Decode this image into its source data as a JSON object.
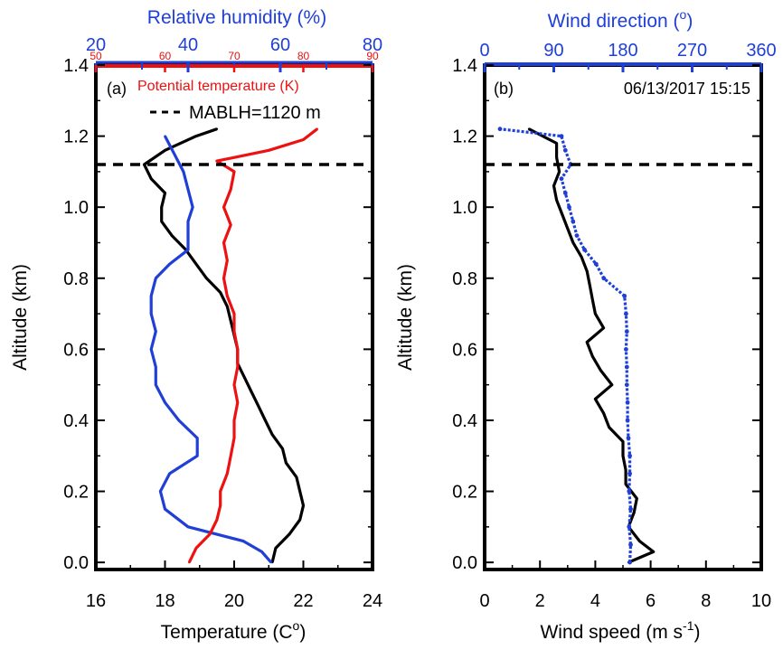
{
  "colors": {
    "black": "#000000",
    "blue": "#1f3fd6",
    "red": "#ee1111",
    "dashed": "#000000"
  },
  "chart_data": [
    {
      "type": "line",
      "panel_label": "(a)",
      "xlabel": "Temperature (C",
      "xlabel_sup": "o",
      "xlabel_end": ")",
      "ylabel": "Altitude (km)",
      "xlim": [
        16,
        24
      ],
      "ylim": [
        -0.02,
        1.4
      ],
      "x_ticks": [
        "16",
        "18",
        "20",
        "22",
        "24"
      ],
      "x_tick_values": [
        16,
        18,
        20,
        22,
        24
      ],
      "y_ticks": [
        "0.0",
        "0.2",
        "0.4",
        "0.6",
        "0.8",
        "1.0",
        "1.2",
        "1.4"
      ],
      "y_tick_values": [
        0,
        0.2,
        0.4,
        0.6,
        0.8,
        1.0,
        1.2,
        1.4
      ],
      "top_axis_blue": {
        "label": "Relative humidity (%)",
        "lim": [
          20,
          80
        ],
        "ticks": [
          "20",
          "40",
          "60",
          "80"
        ],
        "tick_values": [
          20,
          40,
          60,
          80
        ]
      },
      "top_axis_red": {
        "label": "Potential temperature (K)",
        "lim": [
          50,
          90
        ],
        "ticks": [
          "50",
          "60",
          "70",
          "80",
          "90"
        ],
        "tick_values": [
          50,
          60,
          70,
          80,
          90
        ]
      },
      "mablh": {
        "value": 1.12,
        "label": "MABLH=1120 m"
      },
      "series": [
        {
          "axis": "bottom",
          "color": "black",
          "y": [
            0.0,
            0.04,
            0.08,
            0.12,
            0.16,
            0.2,
            0.24,
            0.28,
            0.32,
            0.36,
            0.4,
            0.44,
            0.48,
            0.52,
            0.56,
            0.6,
            0.64,
            0.68,
            0.72,
            0.76,
            0.8,
            0.84,
            0.88,
            0.92,
            0.96,
            1.0,
            1.04,
            1.08,
            1.12,
            1.16,
            1.2,
            1.22
          ],
          "values": [
            21.1,
            21.2,
            21.6,
            21.9,
            22.0,
            21.9,
            21.8,
            21.5,
            21.4,
            21.1,
            20.9,
            20.7,
            20.5,
            20.3,
            20.1,
            20.1,
            20.0,
            19.9,
            19.8,
            19.6,
            19.2,
            18.9,
            18.6,
            18.2,
            17.9,
            17.9,
            18.0,
            17.6,
            17.4,
            18.0,
            18.9,
            19.5
          ]
        },
        {
          "axis": "blue",
          "color": "blue",
          "y": [
            0.0,
            0.03,
            0.06,
            0.1,
            0.15,
            0.2,
            0.25,
            0.3,
            0.35,
            0.4,
            0.45,
            0.5,
            0.55,
            0.6,
            0.65,
            0.7,
            0.75,
            0.8,
            0.84,
            0.88,
            0.92,
            0.96,
            1.0,
            1.05,
            1.1,
            1.15,
            1.2
          ],
          "values": [
            58,
            56,
            52,
            40,
            35,
            34,
            36,
            42,
            42,
            38,
            35,
            33,
            33,
            32,
            33,
            32,
            32,
            33,
            36,
            40,
            40,
            40,
            41,
            40,
            39,
            37,
            35
          ]
        },
        {
          "axis": "red",
          "color": "red",
          "y": [
            0.0,
            0.04,
            0.08,
            0.12,
            0.16,
            0.2,
            0.25,
            0.3,
            0.35,
            0.4,
            0.45,
            0.5,
            0.55,
            0.6,
            0.65,
            0.7,
            0.75,
            0.8,
            0.85,
            0.9,
            0.95,
            1.0,
            1.05,
            1.1,
            1.13,
            1.16,
            1.19,
            1.22
          ],
          "values": [
            63.5,
            64.5,
            66.5,
            67.5,
            68.0,
            68.0,
            69.0,
            69.5,
            70.0,
            70.0,
            70.5,
            70.0,
            70.5,
            70.5,
            70.0,
            70.0,
            69.0,
            68.5,
            69.0,
            68.5,
            69.5,
            68.5,
            69.5,
            70.0,
            67.5,
            75.0,
            80.0,
            82.0
          ]
        }
      ]
    },
    {
      "type": "line",
      "panel_label": "(b)",
      "timestamp": "06/13/2017 15:15",
      "xlabel": "Wind speed (m s",
      "xlabel_sup": "-1",
      "xlabel_end": ")",
      "ylabel": "Altitude (km)",
      "xlim": [
        0,
        10
      ],
      "ylim": [
        -0.02,
        1.4
      ],
      "x_ticks": [
        "0",
        "2",
        "4",
        "6",
        "8",
        "10"
      ],
      "x_tick_values": [
        0,
        2,
        4,
        6,
        8,
        10
      ],
      "y_ticks": [
        "0.0",
        "0.2",
        "0.4",
        "0.6",
        "0.8",
        "1.0",
        "1.2",
        "1.4"
      ],
      "y_tick_values": [
        0,
        0.2,
        0.4,
        0.6,
        0.8,
        1.0,
        1.2,
        1.4
      ],
      "top_axis_blue": {
        "label": "Wind direction (",
        "label_sup": "o",
        "label_end": ")",
        "lim": [
          0,
          360
        ],
        "ticks": [
          "0",
          "90",
          "180",
          "270",
          "360"
        ],
        "tick_values": [
          0,
          90,
          180,
          270,
          360
        ]
      },
      "mablh": {
        "value": 1.12
      },
      "series": [
        {
          "axis": "bottom",
          "color": "black",
          "y": [
            0.0,
            0.03,
            0.06,
            0.1,
            0.14,
            0.18,
            0.22,
            0.26,
            0.3,
            0.34,
            0.38,
            0.42,
            0.46,
            0.5,
            0.54,
            0.58,
            0.62,
            0.66,
            0.7,
            0.74,
            0.78,
            0.82,
            0.86,
            0.9,
            0.94,
            0.98,
            1.02,
            1.06,
            1.1,
            1.14,
            1.18,
            1.22
          ],
          "values": [
            5.2,
            6.1,
            5.6,
            5.2,
            5.4,
            5.5,
            5.1,
            5.1,
            5.0,
            5.0,
            4.5,
            4.3,
            4.0,
            4.6,
            4.2,
            3.9,
            3.7,
            4.3,
            4.0,
            3.9,
            3.8,
            3.7,
            3.5,
            3.2,
            3.0,
            2.8,
            2.6,
            2.5,
            2.7,
            2.6,
            2.6,
            1.6
          ]
        },
        {
          "axis": "blue",
          "color": "blue",
          "y": [
            0.0,
            0.05,
            0.1,
            0.15,
            0.2,
            0.25,
            0.3,
            0.35,
            0.4,
            0.45,
            0.5,
            0.55,
            0.6,
            0.65,
            0.7,
            0.75,
            0.8,
            0.84,
            0.88,
            0.92,
            0.96,
            1.0,
            1.04,
            1.08,
            1.12,
            1.16,
            1.2,
            1.22
          ],
          "values": [
            189,
            190,
            188,
            190,
            188,
            189,
            189,
            187,
            186,
            186,
            185,
            185,
            184,
            185,
            184,
            182,
            155,
            145,
            130,
            120,
            115,
            110,
            105,
            100,
            112,
            105,
            100,
            20
          ]
        }
      ]
    }
  ]
}
